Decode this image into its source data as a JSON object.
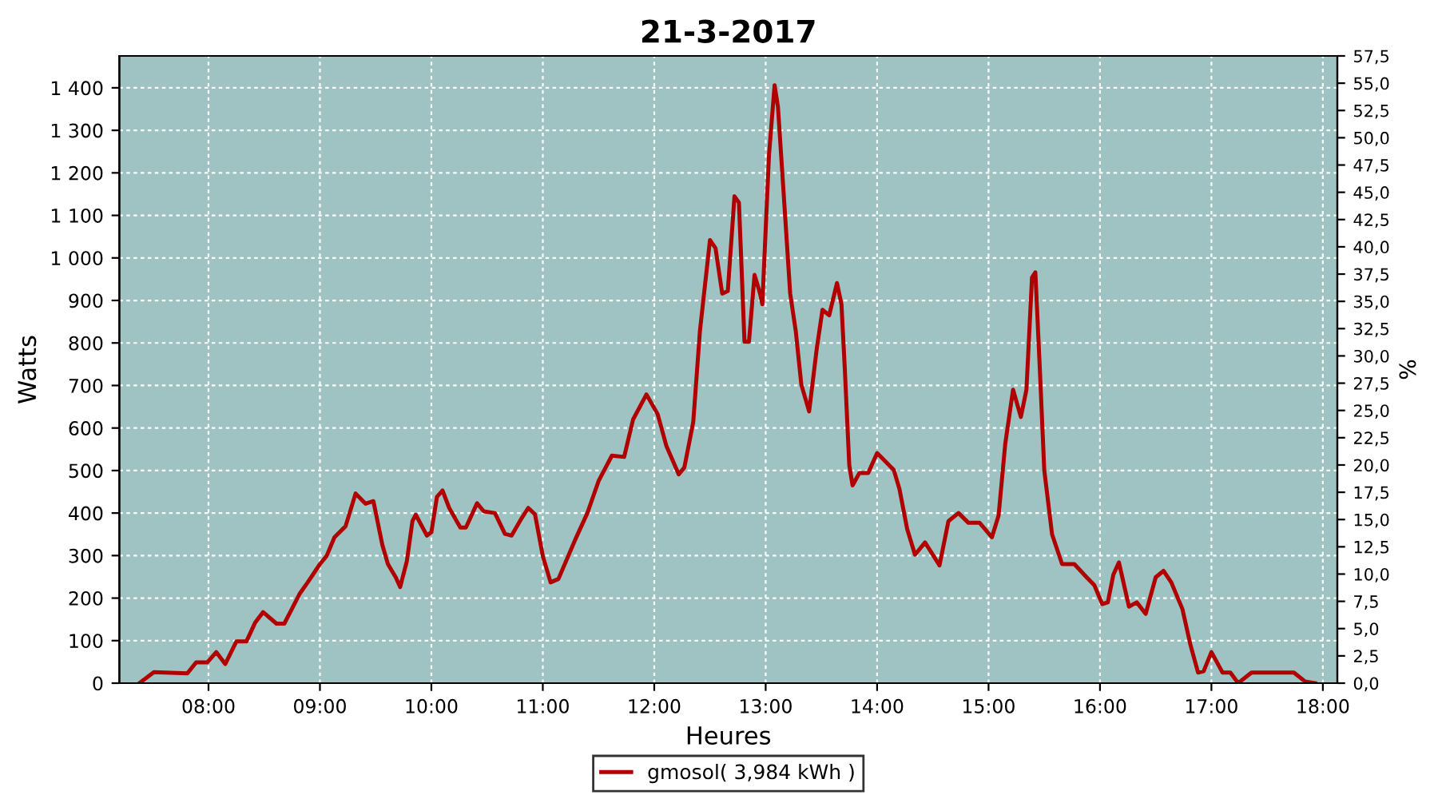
{
  "chart_data": {
    "type": "line",
    "title": "21-3-2017",
    "xlabel": "Heures",
    "ylabel": "Watts",
    "y2label": "%",
    "x": [
      7.38,
      7.51,
      7.81,
      7.89,
      7.99,
      8.07,
      8.15,
      8.25,
      8.34,
      8.42,
      8.49,
      8.61,
      8.68,
      8.82,
      8.89,
      9.0,
      9.06,
      9.13,
      9.23,
      9.32,
      9.41,
      9.48,
      9.56,
      9.61,
      9.68,
      9.72,
      9.78,
      9.83,
      9.86,
      9.96,
      10.0,
      10.05,
      10.1,
      10.16,
      10.26,
      10.31,
      10.41,
      10.47,
      10.57,
      10.66,
      10.72,
      10.81,
      10.87,
      10.93,
      11.0,
      11.07,
      11.14,
      11.29,
      11.4,
      11.5,
      11.62,
      11.73,
      11.81,
      11.93,
      12.03,
      12.11,
      12.22,
      12.27,
      12.35,
      12.41,
      12.5,
      12.55,
      12.61,
      12.66,
      12.72,
      12.76,
      12.81,
      12.85,
      12.9,
      12.95,
      12.97,
      13.03,
      13.08,
      13.11,
      13.17,
      13.22,
      13.27,
      13.32,
      13.39,
      13.46,
      13.51,
      13.57,
      13.64,
      13.68,
      13.71,
      13.75,
      13.78,
      13.84,
      13.92,
      14.0,
      14.15,
      14.2,
      14.27,
      14.34,
      14.43,
      14.56,
      14.64,
      14.73,
      14.82,
      14.92,
      15.03,
      15.09,
      15.15,
      15.22,
      15.29,
      15.34,
      15.39,
      15.42,
      15.46,
      15.5,
      15.57,
      15.66,
      15.77,
      15.88,
      15.95,
      16.02,
      16.07,
      16.12,
      16.17,
      16.26,
      16.33,
      16.41,
      16.5,
      16.57,
      16.64,
      16.74,
      16.81,
      16.88,
      16.93,
      17.0,
      17.1,
      17.17,
      17.24,
      17.36,
      17.55,
      17.74,
      17.84,
      17.93
    ],
    "series": [
      {
        "name": "gmosol( 3,984 kWh )",
        "color": "#b00000",
        "values": [
          0,
          26,
          23,
          49,
          49,
          73,
          45,
          98,
          98,
          143,
          167,
          140,
          140,
          211,
          237,
          280,
          299,
          343,
          369,
          446,
          422,
          428,
          325,
          280,
          249,
          226,
          287,
          381,
          396,
          347,
          355,
          438,
          453,
          412,
          366,
          366,
          423,
          404,
          400,
          351,
          347,
          388,
          412,
          397,
          299,
          237,
          245,
          337,
          400,
          475,
          535,
          532,
          620,
          679,
          633,
          557,
          491,
          507,
          614,
          828,
          1042,
          1023,
          916,
          922,
          1145,
          1130,
          803,
          803,
          960,
          916,
          891,
          1243,
          1406,
          1356,
          1117,
          916,
          828,
          702,
          639,
          790,
          878,
          865,
          941,
          891,
          740,
          513,
          465,
          494,
          494,
          541,
          501,
          457,
          362,
          302,
          331,
          277,
          381,
          400,
          377,
          377,
          343,
          394,
          563,
          690,
          626,
          690,
          954,
          966,
          740,
          501,
          350,
          280,
          280,
          249,
          230,
          186,
          190,
          255,
          284,
          180,
          190,
          163,
          249,
          264,
          237,
          174,
          92,
          25,
          28,
          73,
          25,
          25,
          0,
          25,
          25,
          25,
          4,
          0
        ]
      }
    ],
    "xlim": [
      7.2,
      18.13
    ],
    "xticks": [
      {
        "value": 8,
        "label": "08:00"
      },
      {
        "value": 9,
        "label": "09:00"
      },
      {
        "value": 10,
        "label": "10:00"
      },
      {
        "value": 11,
        "label": "11:00"
      },
      {
        "value": 12,
        "label": "12:00"
      },
      {
        "value": 13,
        "label": "13:00"
      },
      {
        "value": 14,
        "label": "14:00"
      },
      {
        "value": 15,
        "label": "15:00"
      },
      {
        "value": 16,
        "label": "16:00"
      },
      {
        "value": 17,
        "label": "17:00"
      },
      {
        "value": 18,
        "label": "18:00"
      }
    ],
    "ylim": [
      0,
      1475
    ],
    "yticks": [
      0,
      100,
      200,
      300,
      400,
      500,
      600,
      700,
      800,
      900,
      {
        "value": 1000,
        "label": "1 000"
      },
      {
        "value": 1100,
        "label": "1 100"
      },
      {
        "value": 1200,
        "label": "1 200"
      },
      {
        "value": 1300,
        "label": "1 300"
      },
      {
        "value": 1400,
        "label": "1 400"
      }
    ],
    "y2lim": [
      0,
      57.5
    ],
    "y2ticks": [
      {
        "value": 0,
        "label": "0,0"
      },
      {
        "value": 2.5,
        "label": "2,5"
      },
      {
        "value": 5,
        "label": "5,0"
      },
      {
        "value": 7.5,
        "label": "7,5"
      },
      {
        "value": 10,
        "label": "10,0"
      },
      {
        "value": 12.5,
        "label": "12,5"
      },
      {
        "value": 15,
        "label": "15,0"
      },
      {
        "value": 17.5,
        "label": "17,5"
      },
      {
        "value": 20,
        "label": "20,0"
      },
      {
        "value": 22.5,
        "label": "22,5"
      },
      {
        "value": 25,
        "label": "25,0"
      },
      {
        "value": 27.5,
        "label": "27,5"
      },
      {
        "value": 30,
        "label": "30,0"
      },
      {
        "value": 32.5,
        "label": "32,5"
      },
      {
        "value": 35,
        "label": "35,0"
      },
      {
        "value": 37.5,
        "label": "37,5"
      },
      {
        "value": 40,
        "label": "40,0"
      },
      {
        "value": 42.5,
        "label": "42,5"
      },
      {
        "value": 45,
        "label": "45,0"
      },
      {
        "value": 47.5,
        "label": "47,5"
      },
      {
        "value": 50,
        "label": "50,0"
      },
      {
        "value": 52.5,
        "label": "52,5"
      },
      {
        "value": 55,
        "label": "55,0"
      },
      {
        "value": 57.5,
        "label": "57,5"
      }
    ],
    "grid": true,
    "legend": "bottom",
    "line_style": "solid"
  }
}
